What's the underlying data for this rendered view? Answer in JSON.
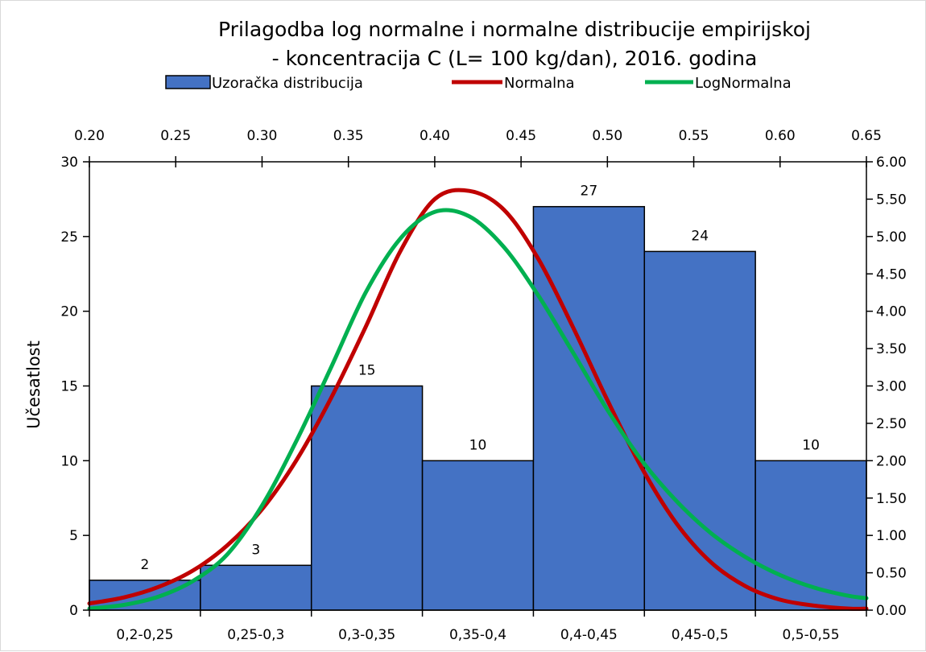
{
  "chart_data": {
    "type": "bar",
    "title_lines": [
      "Prilagodba log normalne i normalne distribucije empirijskoj",
      "-  koncentracija C (L= 100 kg/dan), 2016. godina"
    ],
    "ylabel": "Učesatlost",
    "categories": [
      "0,2-0,25",
      "0,25-0,3",
      "0,3-0,35",
      "0,35-0,4",
      "0,4-0,45",
      "0,45-0,5",
      "0,5-0,55"
    ],
    "series": [
      {
        "name": "Uzoračka distribucija",
        "type": "bar",
        "values": [
          2,
          3,
          15,
          10,
          27,
          24,
          10
        ],
        "color": "#4472C4"
      },
      {
        "name": "Normalna",
        "type": "line",
        "axis": "secondary",
        "color": "#C00000",
        "x": [
          0.2,
          0.22,
          0.24,
          0.26,
          0.28,
          0.3,
          0.32,
          0.34,
          0.36,
          0.38,
          0.4,
          0.42,
          0.44,
          0.46,
          0.48,
          0.5,
          0.52,
          0.54,
          0.56,
          0.58,
          0.6,
          0.62,
          0.64,
          0.65
        ],
        "y": [
          0.09,
          0.17,
          0.31,
          0.53,
          0.87,
          1.35,
          2.01,
          2.84,
          3.79,
          4.8,
          5.5,
          5.61,
          5.36,
          4.7,
          3.79,
          2.81,
          1.9,
          1.16,
          0.64,
          0.32,
          0.14,
          0.06,
          0.02,
          0.02
        ]
      },
      {
        "name": "LogNormalna",
        "type": "line",
        "axis": "secondary",
        "color": "#00B050",
        "x": [
          0.2,
          0.22,
          0.24,
          0.26,
          0.28,
          0.3,
          0.32,
          0.34,
          0.36,
          0.38,
          0.4,
          0.42,
          0.44,
          0.46,
          0.48,
          0.5,
          0.52,
          0.54,
          0.56,
          0.58,
          0.6,
          0.62,
          0.64,
          0.65
        ],
        "y": [
          0.02,
          0.07,
          0.18,
          0.39,
          0.75,
          1.4,
          2.27,
          3.25,
          4.25,
          4.97,
          5.33,
          5.27,
          4.86,
          4.21,
          3.45,
          2.68,
          2.0,
          1.46,
          1.03,
          0.71,
          0.47,
          0.3,
          0.19,
          0.16
        ]
      }
    ],
    "y_primary": {
      "range": [
        0,
        30
      ],
      "ticks": [
        "0",
        "5",
        "10",
        "15",
        "20",
        "25",
        "30"
      ]
    },
    "y_secondary": {
      "range": [
        0,
        6
      ],
      "ticks": [
        "0.00",
        "0.50",
        "1.00",
        "1.50",
        "2.00",
        "2.50",
        "3.00",
        "3.50",
        "4.00",
        "4.50",
        "5.00",
        "5.50",
        "6.00"
      ]
    },
    "x_secondary": {
      "range": [
        0.2,
        0.65
      ],
      "ticks": [
        "0.20",
        "0.25",
        "0.30",
        "0.35",
        "0.40",
        "0.45",
        "0.50",
        "0.55",
        "0.60",
        "0.65"
      ]
    },
    "legend_position": "top",
    "grid": false
  }
}
